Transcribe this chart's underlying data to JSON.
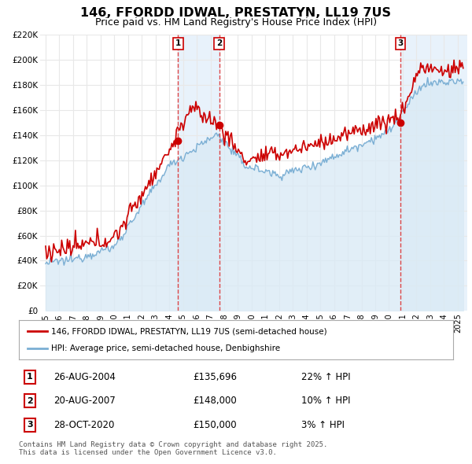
{
  "title": "146, FFORDD IDWAL, PRESTATYN, LL19 7US",
  "subtitle": "Price paid vs. HM Land Registry's House Price Index (HPI)",
  "legend_line1": "146, FFORDD IDWAL, PRESTATYN, LL19 7US (semi-detached house)",
  "legend_line2": "HPI: Average price, semi-detached house, Denbighshire",
  "footer": "Contains HM Land Registry data © Crown copyright and database right 2025.\nThis data is licensed under the Open Government Licence v3.0.",
  "sale_color": "#cc0000",
  "hpi_line_color": "#7bafd4",
  "hpi_fill_color": "#daeaf5",
  "bg_shade_color": "#e8f2fb",
  "xlim_start": 1994.6,
  "xlim_end": 2025.7,
  "ylim_min": 0,
  "ylim_max": 220000,
  "yticks": [
    0,
    20000,
    40000,
    60000,
    80000,
    100000,
    120000,
    140000,
    160000,
    180000,
    200000,
    220000
  ],
  "ytick_labels": [
    "£0",
    "£20K",
    "£40K",
    "£60K",
    "£80K",
    "£100K",
    "£120K",
    "£140K",
    "£160K",
    "£180K",
    "£200K",
    "£220K"
  ],
  "sales": [
    {
      "date_num": 2004.65,
      "price": 135696,
      "label": "1"
    },
    {
      "date_num": 2007.64,
      "price": 148000,
      "label": "2"
    },
    {
      "date_num": 2020.83,
      "price": 150000,
      "label": "3"
    }
  ],
  "sale_annotations": [
    {
      "label": "1",
      "date": "26-AUG-2004",
      "price": "£135,696",
      "pct": "22%",
      "arrow": "↑",
      "vs": "HPI"
    },
    {
      "label": "2",
      "date": "20-AUG-2007",
      "price": "£148,000",
      "pct": "10%",
      "arrow": "↑",
      "vs": "HPI"
    },
    {
      "label": "3",
      "date": "28-OCT-2020",
      "price": "£150,000",
      "pct": "3%",
      "arrow": "↑",
      "vs": "HPI"
    }
  ],
  "background_color": "#ffffff",
  "grid_color": "#dddddd"
}
